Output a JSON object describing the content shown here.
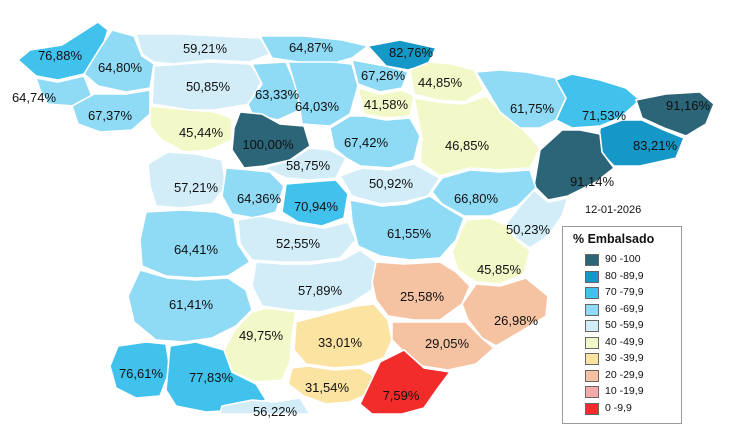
{
  "legend": {
    "date": "12-01-2026",
    "title": "% Embalsado",
    "items": [
      {
        "label": "90 -100",
        "color": "#2b6577"
      },
      {
        "label": "80 -89,9",
        "color": "#1598c8"
      },
      {
        "label": "70 -79,9",
        "color": "#41c2ec"
      },
      {
        "label": "60 -69,9",
        "color": "#8fdaf5"
      },
      {
        "label": "50 -59,9",
        "color": "#d2edf8"
      },
      {
        "label": "40 -49,9",
        "color": "#f3f8c8"
      },
      {
        "label": "30 -39,9",
        "color": "#fbe3a2"
      },
      {
        "label": "20 -29,9",
        "color": "#f6c3a2"
      },
      {
        "label": "10 -19,9",
        "color": "#f3a9a9"
      },
      {
        "label": "0 -9,9",
        "color": "#f22b2b"
      }
    ]
  },
  "regions": [
    {
      "value": "76,88%",
      "class": "70 -79,9"
    },
    {
      "value": "64,80%",
      "class": "60 -69,9"
    },
    {
      "value": "64,74%",
      "class": "60 -69,9"
    },
    {
      "value": "67,37%",
      "class": "60 -69,9"
    },
    {
      "value": "59,21%",
      "class": "50 -59,9"
    },
    {
      "value": "50,85%",
      "class": "50 -59,9"
    },
    {
      "value": "64,87%",
      "class": "60 -69,9"
    },
    {
      "value": "82,76%",
      "class": "80 -89,9"
    },
    {
      "value": "67,26%",
      "class": "60 -69,9"
    },
    {
      "value": "44,85%",
      "class": "40 -49,9"
    },
    {
      "value": "63,33%",
      "class": "60 -69,9"
    },
    {
      "value": "64,03%",
      "class": "60 -69,9"
    },
    {
      "value": "41,58%",
      "class": "40 -49,9"
    },
    {
      "value": "45,44%",
      "class": "40 -49,9"
    },
    {
      "value": "100,00%",
      "class": "90 -100"
    },
    {
      "value": "58,75%",
      "class": "50 -59,9"
    },
    {
      "value": "67,42%",
      "class": "60 -69,9"
    },
    {
      "value": "46,85%",
      "class": "40 -49,9"
    },
    {
      "value": "61,75%",
      "class": "60 -69,9"
    },
    {
      "value": "71,53%",
      "class": "70 -79,9"
    },
    {
      "value": "91,16%",
      "class": "90 -100"
    },
    {
      "value": "83,21%",
      "class": "80 -89,9"
    },
    {
      "value": "91,14%",
      "class": "90 -100"
    },
    {
      "value": "57,21%",
      "class": "50 -59,9"
    },
    {
      "value": "64,36%",
      "class": "60 -69,9"
    },
    {
      "value": "70,94%",
      "class": "70 -79,9"
    },
    {
      "value": "50,92%",
      "class": "50 -59,9"
    },
    {
      "value": "66,80%",
      "class": "60 -69,9"
    },
    {
      "value": "50,23%",
      "class": "50 -59,9"
    },
    {
      "value": "64,41%",
      "class": "60 -69,9"
    },
    {
      "value": "52,55%",
      "class": "50 -59,9"
    },
    {
      "value": "61,55%",
      "class": "60 -69,9"
    },
    {
      "value": "45,85%",
      "class": "40 -49,9"
    },
    {
      "value": "57,89%",
      "class": "50 -59,9"
    },
    {
      "value": "25,58%",
      "class": "20 -29,9"
    },
    {
      "value": "61,41%",
      "class": "60 -69,9"
    },
    {
      "value": "26,98%",
      "class": "20 -29,9"
    },
    {
      "value": "49,75%",
      "class": "40 -49,9"
    },
    {
      "value": "33,01%",
      "class": "30 -39,9"
    },
    {
      "value": "29,05%",
      "class": "20 -29,9"
    },
    {
      "value": "76,61%",
      "class": "70 -79,9"
    },
    {
      "value": "77,83%",
      "class": "70 -79,9"
    },
    {
      "value": "31,54%",
      "class": "30 -39,9"
    },
    {
      "value": "7,59%",
      "class": "0 -9,9"
    },
    {
      "value": "56,22%",
      "class": "50 -59,9"
    }
  ]
}
